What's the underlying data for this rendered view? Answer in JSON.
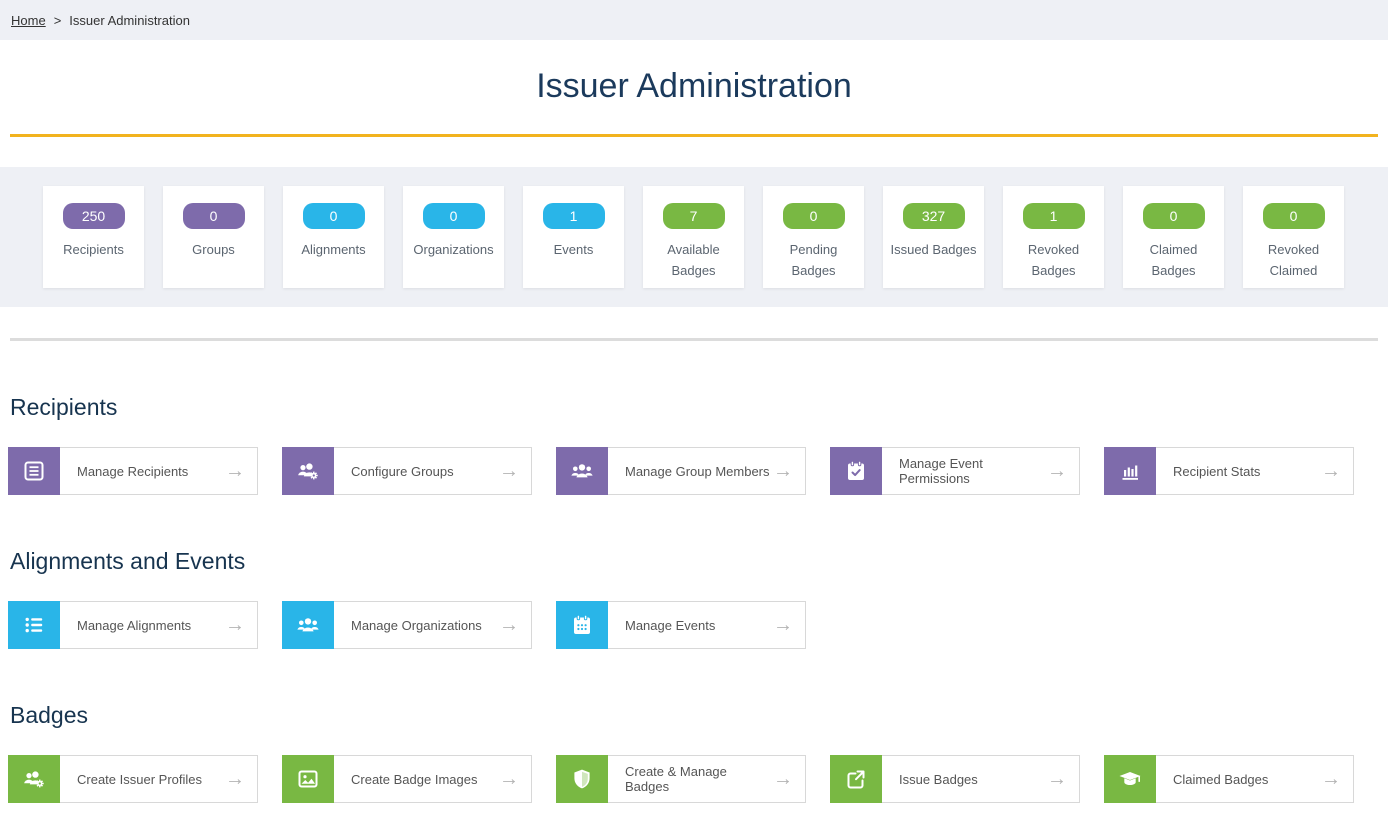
{
  "breadcrumb": {
    "home_label": "Home",
    "separator": ">",
    "current_label": "Issuer Administration"
  },
  "title": "Issuer Administration",
  "colors": {
    "purple": "#7e6bab",
    "blue": "#29b5e8",
    "green": "#79b843",
    "accent_line": "#f2b31e",
    "band_background": "#eef0f5"
  },
  "arrow_glyph": "→",
  "stats": [
    {
      "value": "250",
      "label": "Recipients",
      "color": "purple"
    },
    {
      "value": "0",
      "label": "Groups",
      "color": "purple"
    },
    {
      "value": "0",
      "label": "Alignments",
      "color": "blue"
    },
    {
      "value": "0",
      "label": "Organizations",
      "color": "blue"
    },
    {
      "value": "1",
      "label": "Events",
      "color": "blue"
    },
    {
      "value": "7",
      "label": "Available Badges",
      "color": "green"
    },
    {
      "value": "0",
      "label": "Pending Badges",
      "color": "green"
    },
    {
      "value": "327",
      "label": "Issued Badges",
      "color": "green"
    },
    {
      "value": "1",
      "label": "Revoked Badges",
      "color": "green"
    },
    {
      "value": "0",
      "label": "Claimed Badges",
      "color": "green"
    },
    {
      "value": "0",
      "label": "Revoked Claimed",
      "color": "green"
    }
  ],
  "sections": [
    {
      "heading": "Recipients",
      "color": "purple",
      "cards": [
        {
          "label": "Manage Recipients",
          "icon": "list-box-icon"
        },
        {
          "label": "Configure Groups",
          "icon": "users-gear-icon"
        },
        {
          "label": "Manage Group Members",
          "icon": "users-icon"
        },
        {
          "label": "Manage Event Permissions",
          "icon": "calendar-check-icon"
        },
        {
          "label": "Recipient Stats",
          "icon": "bar-chart-icon"
        }
      ]
    },
    {
      "heading": "Alignments and Events",
      "color": "blue",
      "cards": [
        {
          "label": "Manage Alignments",
          "icon": "bullet-list-icon"
        },
        {
          "label": "Manage Organizations",
          "icon": "users-icon"
        },
        {
          "label": "Manage Events",
          "icon": "calendar-icon"
        }
      ]
    },
    {
      "heading": "Badges",
      "color": "green",
      "cards": [
        {
          "label": "Create Issuer Profiles",
          "icon": "users-gear-icon"
        },
        {
          "label": "Create Badge Images",
          "icon": "image-icon"
        },
        {
          "label": "Create & Manage Badges",
          "icon": "shield-icon"
        },
        {
          "label": "Issue Badges",
          "icon": "share-square-icon"
        },
        {
          "label": "Claimed Badges",
          "icon": "graduation-cap-icon"
        }
      ]
    }
  ]
}
